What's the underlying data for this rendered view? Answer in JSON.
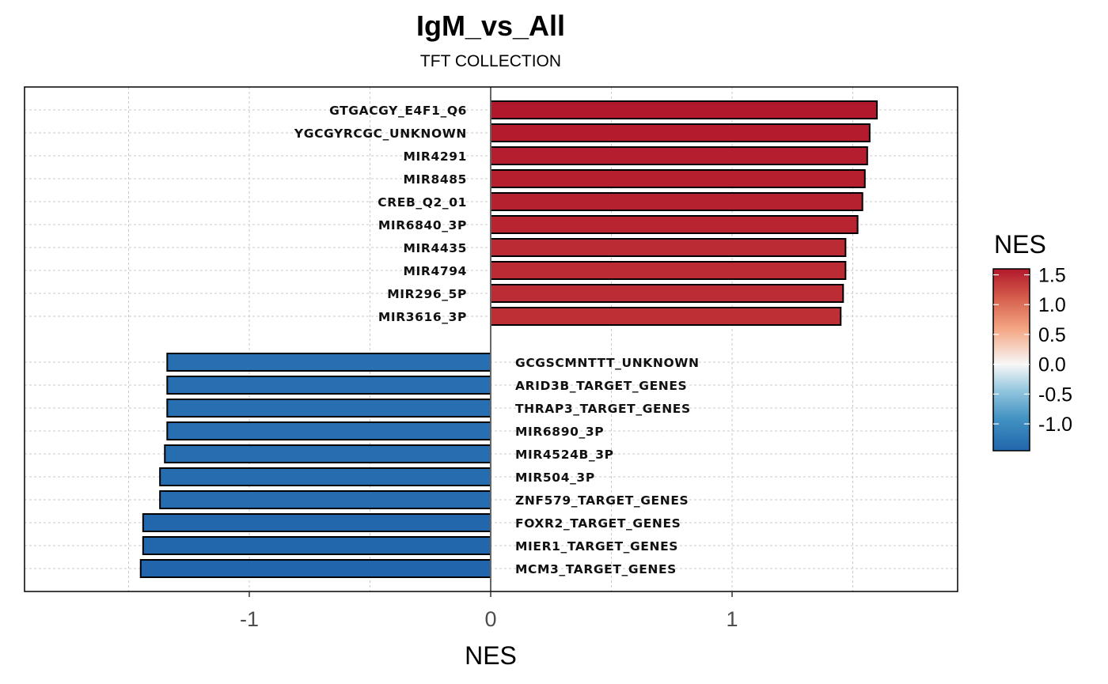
{
  "chart_data": {
    "type": "bar",
    "orientation": "horizontal",
    "title": "IgM_vs_All",
    "subtitle": "TFT COLLECTION",
    "xlabel": "NES",
    "ylabel": "",
    "xlim": [
      -1.9,
      1.93
    ],
    "xticks": [
      -1,
      0,
      1
    ],
    "xtick_labels": [
      "-1",
      "0",
      "1"
    ],
    "grid": true,
    "legend": {
      "title": "NES",
      "position": "right",
      "type": "colorbar",
      "ticks": [
        1.5,
        1.0,
        0.5,
        0.0,
        -0.5,
        -1.0
      ],
      "tick_labels": [
        "1.5",
        "1.0",
        "0.5",
        "0.0",
        "-0.5",
        "-1.0"
      ],
      "range": [
        -1.45,
        1.6
      ],
      "colors": [
        "#2166ac",
        "#4393c3",
        "#92c5de",
        "#f7f7f7",
        "#f4a582",
        "#d6604d",
        "#b2182b"
      ]
    },
    "categories": [
      "GTGACGY_E4F1_Q6",
      "YGCGYRCGC_UNKNOWN",
      "MIR4291",
      "MIR8485",
      "CREB_Q2_01",
      "MIR6840_3P",
      "MIR4435",
      "MIR4794",
      "MIR296_5P",
      "MIR3616_3P",
      "GCGSCMNTTT_UNKNOWN",
      "ARID3B_TARGET_GENES",
      "THRAP3_TARGET_GENES",
      "MIR6890_3P",
      "MIR4524B_3P",
      "MIR504_3P",
      "ZNF579_TARGET_GENES",
      "FOXR2_TARGET_GENES",
      "MIER1_TARGET_GENES",
      "MCM3_TARGET_GENES"
    ],
    "values": [
      1.6,
      1.57,
      1.56,
      1.55,
      1.54,
      1.52,
      1.47,
      1.47,
      1.46,
      1.45,
      -1.34,
      -1.34,
      -1.34,
      -1.34,
      -1.35,
      -1.37,
      -1.37,
      -1.44,
      -1.44,
      -1.45
    ]
  }
}
